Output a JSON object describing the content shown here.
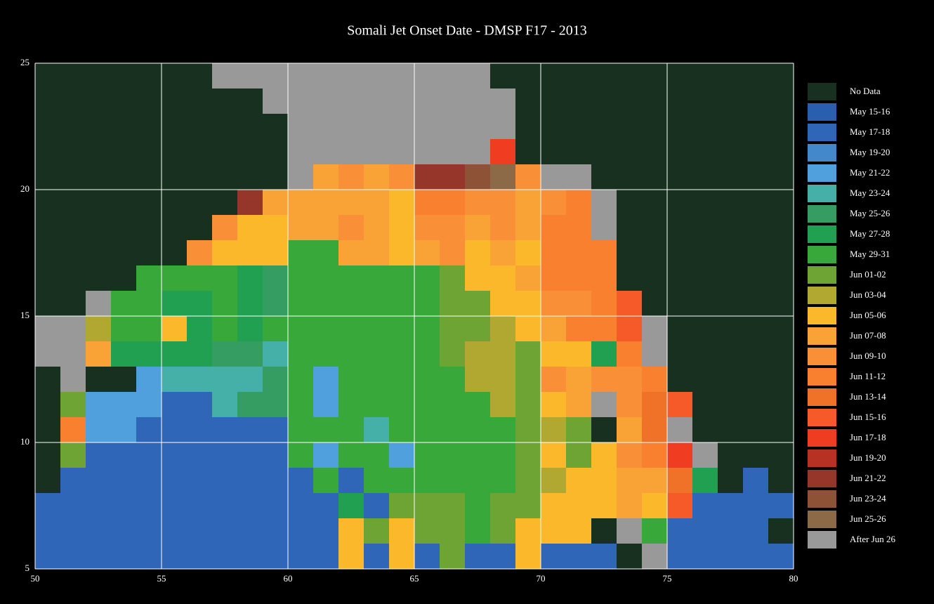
{
  "chart_data": {
    "type": "heatmap",
    "title": "Somali Jet Onset Date - DMSP F17 - 2013",
    "xlim": [
      50,
      80
    ],
    "ylim": [
      5,
      25
    ],
    "xticks": [
      50,
      55,
      60,
      65,
      70,
      75,
      80
    ],
    "yticks": [
      5,
      10,
      15,
      20,
      25
    ],
    "grid": true,
    "legend": [
      {
        "name": "No Data",
        "color": "#17301f"
      },
      {
        "name": "May 15-16",
        "color": "#2a5fb0"
      },
      {
        "name": "May 17-18",
        "color": "#2f66b8"
      },
      {
        "name": "May 19-20",
        "color": "#4488cc"
      },
      {
        "name": "May 21-22",
        "color": "#4fa0dc"
      },
      {
        "name": "May 23-24",
        "color": "#44b0a8"
      },
      {
        "name": "May 25-26",
        "color": "#359d62"
      },
      {
        "name": "May 27-28",
        "color": "#20a050"
      },
      {
        "name": "May 29-31",
        "color": "#38a83a"
      },
      {
        "name": "Jun 01-02",
        "color": "#6ea434"
      },
      {
        "name": "Jun 03-04",
        "color": "#b0a830"
      },
      {
        "name": "Jun 05-06",
        "color": "#fbb82a"
      },
      {
        "name": "Jun 07-08",
        "color": "#f9a236"
      },
      {
        "name": "Jun 09-10",
        "color": "#f98f36"
      },
      {
        "name": "Jun 11-12",
        "color": "#f8802e"
      },
      {
        "name": "Jun 13-14",
        "color": "#f07228"
      },
      {
        "name": "Jun 15-16",
        "color": "#f65a28"
      },
      {
        "name": "Jun 17-18",
        "color": "#f03c20"
      },
      {
        "name": "Jun 19-20",
        "color": "#b83224"
      },
      {
        "name": "Jun 21-22",
        "color": "#96362a"
      },
      {
        "name": "Jun 23-24",
        "color": "#8e5236"
      },
      {
        "name": "Jun 25-26",
        "color": "#8c6a48"
      },
      {
        "name": "After Jun 26",
        "color": "#999999"
      }
    ],
    "cells": [
      [
        0,
        0,
        0,
        0,
        0,
        0,
        0,
        22,
        22,
        22,
        22,
        22,
        22,
        22,
        22,
        22,
        22,
        22,
        0,
        0,
        0,
        0,
        0,
        0,
        0,
        0,
        0,
        0,
        0,
        0
      ],
      [
        0,
        0,
        0,
        0,
        0,
        0,
        0,
        0,
        0,
        22,
        22,
        22,
        22,
        22,
        22,
        22,
        22,
        22,
        22,
        0,
        0,
        0,
        0,
        0,
        0,
        0,
        0,
        0,
        0,
        0
      ],
      [
        0,
        0,
        0,
        0,
        0,
        0,
        0,
        0,
        0,
        0,
        22,
        22,
        22,
        22,
        22,
        22,
        22,
        22,
        22,
        0,
        0,
        0,
        0,
        0,
        0,
        0,
        0,
        0,
        0,
        0
      ],
      [
        0,
        0,
        0,
        0,
        0,
        0,
        0,
        0,
        0,
        0,
        22,
        22,
        22,
        22,
        22,
        22,
        22,
        22,
        17,
        0,
        0,
        0,
        0,
        0,
        0,
        0,
        0,
        0,
        0,
        0
      ],
      [
        0,
        0,
        0,
        0,
        0,
        0,
        0,
        0,
        0,
        0,
        22,
        12,
        13,
        12,
        13,
        19,
        19,
        20,
        21,
        13,
        22,
        22,
        0,
        0,
        0,
        0,
        0,
        0,
        0,
        0
      ],
      [
        0,
        0,
        0,
        0,
        0,
        0,
        0,
        0,
        19,
        12,
        12,
        12,
        12,
        12,
        11,
        14,
        14,
        13,
        13,
        12,
        13,
        14,
        22,
        0,
        0,
        0,
        0,
        0,
        0,
        0
      ],
      [
        0,
        0,
        0,
        0,
        0,
        0,
        0,
        13,
        11,
        11,
        12,
        12,
        13,
        12,
        11,
        13,
        13,
        12,
        13,
        12,
        14,
        14,
        22,
        0,
        0,
        0,
        0,
        0,
        0,
        0
      ],
      [
        0,
        0,
        0,
        0,
        0,
        0,
        13,
        11,
        11,
        11,
        8,
        8,
        12,
        12,
        11,
        12,
        13,
        11,
        12,
        11,
        14,
        14,
        14,
        0,
        0,
        0,
        0,
        0,
        0,
        0
      ],
      [
        0,
        0,
        0,
        0,
        8,
        8,
        8,
        8,
        7,
        6,
        8,
        8,
        8,
        8,
        8,
        8,
        9,
        11,
        11,
        12,
        14,
        14,
        14,
        0,
        0,
        0,
        0,
        0,
        0,
        0
      ],
      [
        0,
        0,
        22,
        8,
        8,
        7,
        7,
        8,
        7,
        6,
        8,
        8,
        8,
        8,
        8,
        8,
        9,
        9,
        11,
        11,
        13,
        13,
        14,
        16,
        0,
        0,
        0,
        0,
        0,
        0
      ],
      [
        22,
        22,
        10,
        8,
        8,
        11,
        7,
        8,
        7,
        8,
        8,
        8,
        8,
        8,
        8,
        8,
        9,
        9,
        10,
        11,
        12,
        14,
        14,
        16,
        22,
        0,
        0,
        0,
        0,
        0
      ],
      [
        22,
        22,
        12,
        7,
        7,
        7,
        7,
        6,
        6,
        5,
        8,
        8,
        8,
        8,
        8,
        8,
        9,
        10,
        10,
        9,
        11,
        11,
        7,
        14,
        22,
        0,
        0,
        0,
        0,
        0
      ],
      [
        0,
        22,
        0,
        0,
        4,
        5,
        5,
        5,
        5,
        6,
        8,
        4,
        8,
        8,
        8,
        8,
        8,
        10,
        10,
        9,
        13,
        12,
        13,
        13,
        14,
        0,
        0,
        0,
        0,
        0
      ],
      [
        0,
        9,
        4,
        4,
        4,
        2,
        2,
        5,
        6,
        6,
        8,
        4,
        8,
        8,
        8,
        8,
        8,
        8,
        10,
        9,
        11,
        12,
        22,
        13,
        15,
        16,
        0,
        0,
        0,
        0
      ],
      [
        0,
        14,
        4,
        4,
        2,
        2,
        2,
        2,
        2,
        2,
        8,
        8,
        8,
        5,
        8,
        8,
        8,
        8,
        8,
        9,
        10,
        9,
        0,
        12,
        15,
        22,
        0,
        0,
        0,
        0
      ],
      [
        0,
        9,
        2,
        2,
        2,
        2,
        2,
        2,
        2,
        2,
        8,
        4,
        8,
        8,
        4,
        8,
        8,
        8,
        8,
        9,
        11,
        9,
        11,
        13,
        14,
        17,
        22,
        0,
        0,
        0
      ],
      [
        0,
        2,
        2,
        2,
        2,
        2,
        2,
        2,
        2,
        2,
        2,
        8,
        2,
        8,
        8,
        8,
        8,
        8,
        8,
        9,
        10,
        11,
        11,
        12,
        12,
        15,
        7,
        0,
        2,
        0
      ],
      [
        2,
        2,
        2,
        2,
        2,
        2,
        2,
        2,
        2,
        2,
        2,
        2,
        7,
        2,
        9,
        9,
        9,
        8,
        9,
        9,
        11,
        11,
        11,
        12,
        11,
        16,
        2,
        2,
        2,
        2
      ],
      [
        2,
        2,
        2,
        2,
        2,
        2,
        2,
        2,
        2,
        2,
        2,
        2,
        11,
        9,
        11,
        9,
        9,
        8,
        9,
        11,
        11,
        11,
        0,
        22,
        8,
        2,
        2,
        2,
        2,
        0
      ],
      [
        2,
        2,
        2,
        2,
        2,
        2,
        2,
        2,
        2,
        2,
        2,
        2,
        11,
        2,
        11,
        2,
        9,
        2,
        2,
        11,
        2,
        2,
        2,
        0,
        22,
        2,
        2,
        2,
        2,
        2
      ]
    ]
  }
}
